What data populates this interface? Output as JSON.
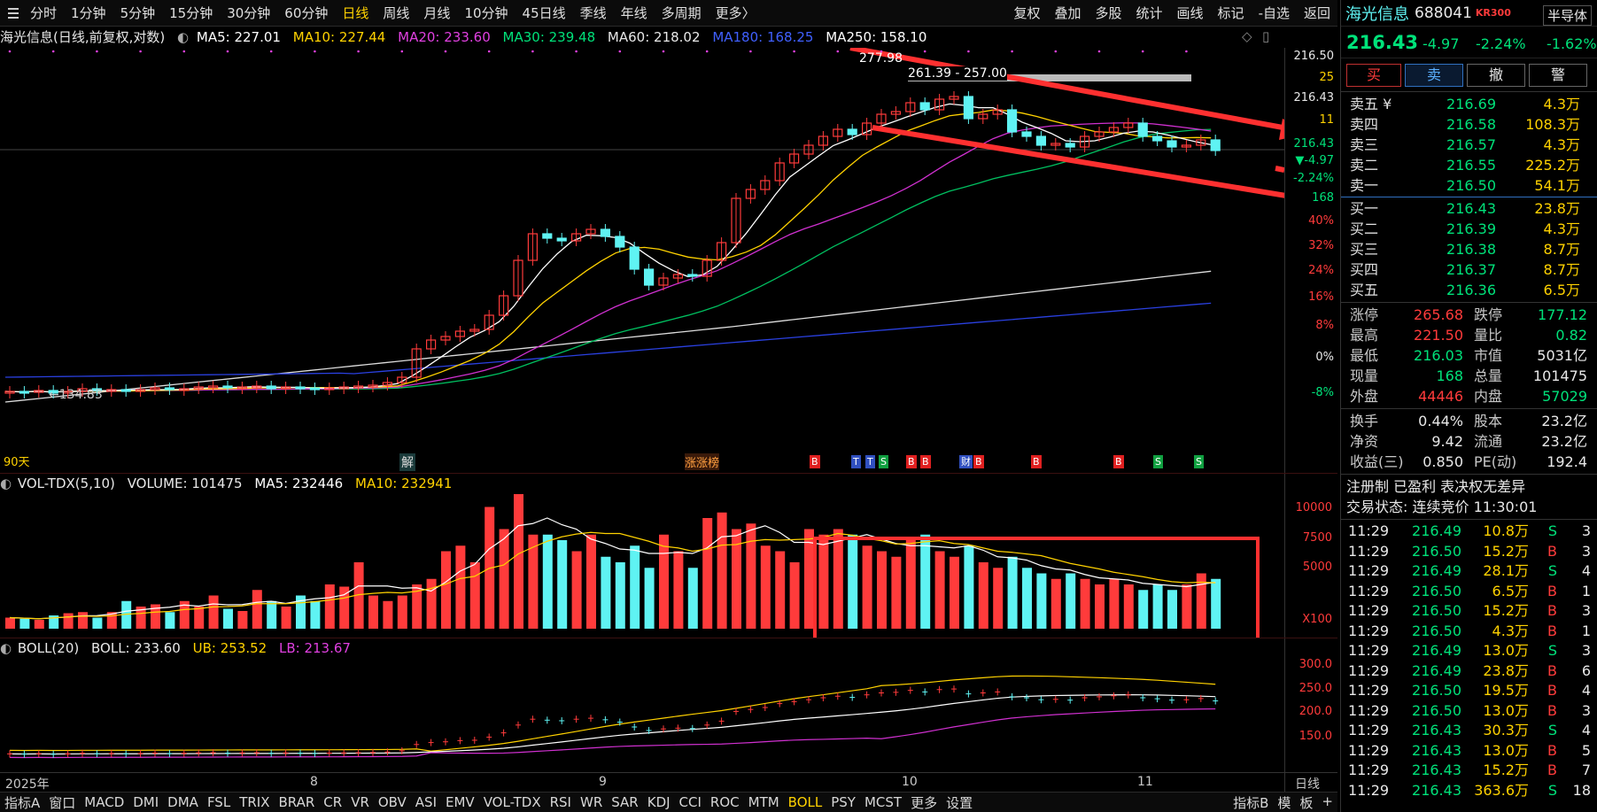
{
  "toolbar": {
    "items": [
      "分时",
      "1分钟",
      "5分钟",
      "15分钟",
      "30分钟",
      "60分钟",
      "日线",
      "周线",
      "月线",
      "10分钟",
      "45日线",
      "季线",
      "年线",
      "多周期",
      "更多〉"
    ],
    "active_index": 6,
    "right_items": [
      "复权",
      "叠加",
      "多股",
      "统计",
      "画线",
      "标记",
      "-自选",
      "返回"
    ]
  },
  "main_legend": {
    "title": "海光信息(日线,前复权,对数)",
    "ma5": "MA5: 227.01",
    "ma10": "MA10: 227.44",
    "ma20": "MA20: 233.60",
    "ma30": "MA30: 239.48",
    "ma60": "MA60: 218.02",
    "ma180": "MA180: 168.25",
    "ma250": "MA250: 158.10"
  },
  "main_annotations": {
    "high": "277.98",
    "range": "261.39 - 257.00",
    "low": "134.83",
    "left_label": "90天",
    "jie": "解",
    "zhangting": "涨涨榜"
  },
  "main_axis": [
    {
      "v": "216.50",
      "c": "#e8e8e8"
    },
    {
      "v": "25",
      "c": "#ffd200"
    },
    {
      "v": "216.43",
      "c": "#e8e8e8"
    },
    {
      "v": "11",
      "c": "#ffd200"
    },
    {
      "v": "216.43",
      "c": "#00e27a"
    },
    {
      "v": "▼-4.97",
      "c": "#00e27a"
    },
    {
      "v": "-2.24%",
      "c": "#00e27a"
    },
    {
      "v": "168",
      "c": "#00e27a"
    },
    {
      "v": "40%",
      "c": "#ff3b3b"
    },
    {
      "v": "32%",
      "c": "#ff3b3b"
    },
    {
      "v": "24%",
      "c": "#ff3b3b"
    },
    {
      "v": "16%",
      "c": "#ff3b3b"
    },
    {
      "v": "8%",
      "c": "#ff3b3b"
    },
    {
      "v": "0%",
      "c": "#e8e8e8"
    },
    {
      "v": "-8%",
      "c": "#00e27a"
    }
  ],
  "markers": [
    {
      "t": "B",
      "c": "#e02020"
    },
    {
      "t": "T",
      "c": "#3050c0"
    },
    {
      "t": "T",
      "c": "#3050c0"
    },
    {
      "t": "S",
      "c": "#10a040"
    },
    {
      "t": "B",
      "c": "#e02020"
    },
    {
      "t": "B",
      "c": "#e02020"
    },
    {
      "t": "财",
      "c": "#3050c0"
    },
    {
      "t": "B",
      "c": "#e02020"
    },
    {
      "t": "B",
      "c": "#e02020"
    },
    {
      "t": "B",
      "c": "#e02020"
    },
    {
      "t": "S",
      "c": "#10a040"
    },
    {
      "t": "S",
      "c": "#10a040"
    }
  ],
  "vol_legend": {
    "name": "VOL-TDX(5,10)",
    "volume": "VOLUME: 101475",
    "ma5": "MA5: 232446",
    "ma10": "MA10: 232941"
  },
  "vol_axis": [
    "10000",
    "7500",
    "5000",
    "X100"
  ],
  "boll_legend": {
    "name": "BOLL(20)",
    "boll": "BOLL: 233.60",
    "ub": "UB: 253.52",
    "lb": "LB: 213.67"
  },
  "boll_axis": [
    "300.0",
    "250.0",
    "200.0",
    "150.0"
  ],
  "date_axis": {
    "year": "2025年",
    "m8": "8",
    "m9": "9",
    "m10": "10",
    "m11": "11",
    "period": "日线"
  },
  "bottom": {
    "items": [
      "指标A",
      "窗口",
      "MACD",
      "DMI",
      "DMA",
      "FSL",
      "TRIX",
      "BRAR",
      "CR",
      "VR",
      "OBV",
      "ASI",
      "EMV",
      "VOL-TDX",
      "RSI",
      "WR",
      "SAR",
      "KDJ",
      "CCI",
      "ROC",
      "MTM",
      "BOLL",
      "PSY",
      "MCST",
      "更多",
      "设置"
    ],
    "active_index": 21,
    "right": [
      "指标B",
      "模",
      "板",
      "+"
    ]
  },
  "quote": {
    "name": "海光信息",
    "code": "688041",
    "tag": "KR300",
    "sector": "半导体",
    "sector_change": "-1.62%",
    "price": "216.43",
    "change": "-4.97",
    "pct": "-2.24%"
  },
  "actions": [
    "买",
    "卖",
    "撤",
    "警"
  ],
  "asks": [
    {
      "label": "卖五 ¥",
      "price": "216.69",
      "vol": "4.3万"
    },
    {
      "label": "卖四",
      "price": "216.58",
      "vol": "108.3万"
    },
    {
      "label": "卖三",
      "price": "216.57",
      "vol": "4.3万"
    },
    {
      "label": "卖二",
      "price": "216.55",
      "vol": "225.2万"
    },
    {
      "label": "卖一",
      "price": "216.50",
      "vol": "54.1万"
    }
  ],
  "bids": [
    {
      "label": "买一",
      "price": "216.43",
      "vol": "23.8万"
    },
    {
      "label": "买二",
      "price": "216.39",
      "vol": "4.3万"
    },
    {
      "label": "买三",
      "price": "216.38",
      "vol": "8.7万"
    },
    {
      "label": "买四",
      "price": "216.37",
      "vol": "8.7万"
    },
    {
      "label": "买五",
      "price": "216.36",
      "vol": "6.5万"
    }
  ],
  "stats": [
    {
      "l1": "涨停",
      "v1": "265.68",
      "c1": "#ff3b3b",
      "l2": "跌停",
      "v2": "177.12",
      "c2": "#00e27a"
    },
    {
      "l1": "最高",
      "v1": "221.50",
      "c1": "#ff3b3b",
      "l2": "量比",
      "v2": "0.82",
      "c2": "#00e27a"
    },
    {
      "l1": "最低",
      "v1": "216.03",
      "c1": "#00e27a",
      "l2": "市值",
      "v2": "5031亿",
      "c2": "#e8e8e8"
    },
    {
      "l1": "现量",
      "v1": "168",
      "c1": "#00e27a",
      "l2": "总量",
      "v2": "101475",
      "c2": "#e8e8e8"
    },
    {
      "l1": "外盘",
      "v1": "44446",
      "c1": "#ff3b3b",
      "l2": "内盘",
      "v2": "57029",
      "c2": "#00e27a"
    }
  ],
  "stats2": [
    {
      "l1": "换手",
      "v1": "0.44%",
      "l2": "股本",
      "v2": "23.2亿"
    },
    {
      "l1": "净资",
      "v1": "9.42",
      "l2": "流通",
      "v2": "23.2亿"
    },
    {
      "l1": "收益(三)",
      "v1": "0.850",
      "l2": "PE(动)",
      "v2": "192.4"
    }
  ],
  "info1": "注册制 已盈利 表决权无差异",
  "info2": "交易状态: 连续竞价 11:30:01",
  "ticks": [
    {
      "t": "11:29",
      "p": "216.49",
      "v": "10.8万",
      "s": "S",
      "n": "3"
    },
    {
      "t": "11:29",
      "p": "216.50",
      "v": "15.2万",
      "s": "B",
      "n": "3"
    },
    {
      "t": "11:29",
      "p": "216.49",
      "v": "28.1万",
      "s": "S",
      "n": "4"
    },
    {
      "t": "11:29",
      "p": "216.50",
      "v": "6.5万",
      "s": "B",
      "n": "1"
    },
    {
      "t": "11:29",
      "p": "216.50",
      "v": "15.2万",
      "s": "B",
      "n": "3"
    },
    {
      "t": "11:29",
      "p": "216.50",
      "v": "4.3万",
      "s": "B",
      "n": "1"
    },
    {
      "t": "11:29",
      "p": "216.49",
      "v": "13.0万",
      "s": "S",
      "n": "3"
    },
    {
      "t": "11:29",
      "p": "216.49",
      "v": "23.8万",
      "s": "B",
      "n": "6"
    },
    {
      "t": "11:29",
      "p": "216.50",
      "v": "19.5万",
      "s": "B",
      "n": "4"
    },
    {
      "t": "11:29",
      "p": "216.50",
      "v": "13.0万",
      "s": "B",
      "n": "3"
    },
    {
      "t": "11:29",
      "p": "216.43",
      "v": "30.3万",
      "s": "S",
      "n": "4"
    },
    {
      "t": "11:29",
      "p": "216.43",
      "v": "13.0万",
      "s": "B",
      "n": "5"
    },
    {
      "t": "11:29",
      "p": "216.43",
      "v": "15.2万",
      "s": "B",
      "n": "7"
    },
    {
      "t": "11:29",
      "p": "216.43",
      "v": "363.6万",
      "s": "S",
      "n": "18"
    }
  ],
  "colors": {
    "up": "#ff3b3b",
    "down": "#5ff3f3",
    "ma5": "#ffffff",
    "ma10": "#ffd200",
    "ma20": "#e040e0",
    "ma30": "#00e27a",
    "ma60": "#4060ff",
    "ma250": "#ffffff"
  }
}
